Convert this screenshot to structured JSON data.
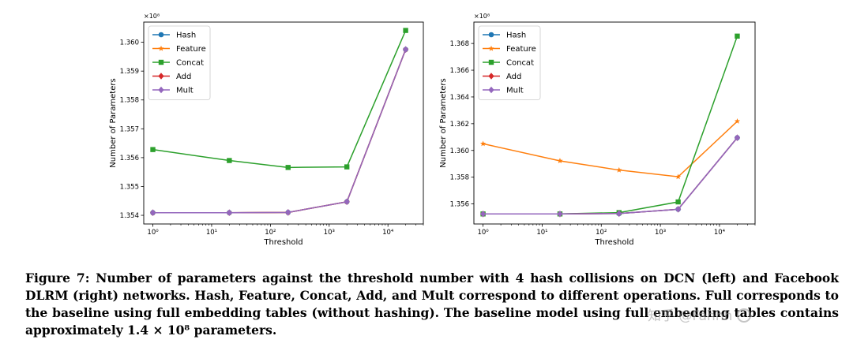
{
  "chart_data": [
    {
      "type": "line",
      "id": "left",
      "xlabel": "Threshold",
      "ylabel": "Number of Parameters",
      "y_multiplier_label": "×10⁸",
      "x_scale": "log",
      "xlim": [
        0.7,
        40000
      ],
      "ylim": [
        1.3537,
        1.3607
      ],
      "x_ticks": [
        1,
        10,
        100,
        1000,
        10000
      ],
      "x_tick_labels": [
        "10⁰",
        "10¹",
        "10²",
        "10³",
        "10⁴"
      ],
      "y_ticks": [
        1.354,
        1.355,
        1.356,
        1.357,
        1.358,
        1.359,
        1.36
      ],
      "y_tick_labels": [
        "1.354",
        "1.355",
        "1.356",
        "1.357",
        "1.358",
        "1.359",
        "1.360"
      ],
      "grid": false,
      "legend_position": "top-left",
      "x": [
        1,
        20,
        200,
        2000,
        20000
      ],
      "series": [
        {
          "name": "Hash",
          "color": "#1f77b4",
          "marker": "circle",
          "values": [
            1.35409,
            1.35409,
            1.3541,
            1.35447,
            1.35975
          ]
        },
        {
          "name": "Feature",
          "color": "#ff7f0e",
          "marker": "star",
          "values": [
            1.35409,
            1.35409,
            1.3541,
            1.35447,
            1.35975
          ]
        },
        {
          "name": "Concat",
          "color": "#2ca02c",
          "marker": "square",
          "values": [
            1.35628,
            1.3559,
            1.35566,
            1.35568,
            1.36041
          ]
        },
        {
          "name": "Add",
          "color": "#d62728",
          "marker": "diamond",
          "values": [
            1.35409,
            1.35409,
            1.3541,
            1.35447,
            1.35975
          ]
        },
        {
          "name": "Mult",
          "color": "#9467bd",
          "marker": "diamond",
          "values": [
            1.35409,
            1.35409,
            1.3541,
            1.35447,
            1.35975
          ]
        }
      ]
    },
    {
      "type": "line",
      "id": "right",
      "xlabel": "Threshold",
      "ylabel": "Number of Parameters",
      "y_multiplier_label": "×10⁸",
      "x_scale": "log",
      "xlim": [
        0.7,
        40000
      ],
      "ylim": [
        1.3545,
        1.3696
      ],
      "x_ticks": [
        1,
        10,
        100,
        1000,
        10000
      ],
      "x_tick_labels": [
        "10⁰",
        "10¹",
        "10²",
        "10³",
        "10⁴"
      ],
      "y_ticks": [
        1.356,
        1.358,
        1.36,
        1.362,
        1.364,
        1.366,
        1.368
      ],
      "y_tick_labels": [
        "1.356",
        "1.358",
        "1.360",
        "1.362",
        "1.364",
        "1.366",
        "1.368"
      ],
      "grid": false,
      "legend_position": "top-left",
      "x": [
        1,
        20,
        200,
        2000,
        20000
      ],
      "series": [
        {
          "name": "Hash",
          "color": "#1f77b4",
          "marker": "circle",
          "values": [
            1.35525,
            1.35525,
            1.35528,
            1.3556,
            1.36095
          ]
        },
        {
          "name": "Feature",
          "color": "#ff7f0e",
          "marker": "star",
          "values": [
            1.3605,
            1.35922,
            1.35853,
            1.35803,
            1.36218
          ]
        },
        {
          "name": "Concat",
          "color": "#2ca02c",
          "marker": "square",
          "values": [
            1.35525,
            1.35525,
            1.35535,
            1.35615,
            1.36855
          ]
        },
        {
          "name": "Add",
          "color": "#d62728",
          "marker": "diamond",
          "values": [
            1.35525,
            1.35525,
            1.35528,
            1.3556,
            1.36095
          ]
        },
        {
          "name": "Mult",
          "color": "#9467bd",
          "marker": "diamond",
          "values": [
            1.35525,
            1.35525,
            1.35528,
            1.3556,
            1.36095
          ]
        }
      ]
    }
  ],
  "caption": "Figure 7: Number of parameters against the threshold number with 4 hash collisions on DCN (left) and Facebook DLRM (right) networks. Hash, Feature, Concat, Add, and Mult correspond to different operations. Full corresponds to the baseline using full embedding tables (without hashing). The baseline model using full embedding tables contains approximately 1.4 × 10⁸ parameters.",
  "watermark": "知乎 @Fahhh"
}
